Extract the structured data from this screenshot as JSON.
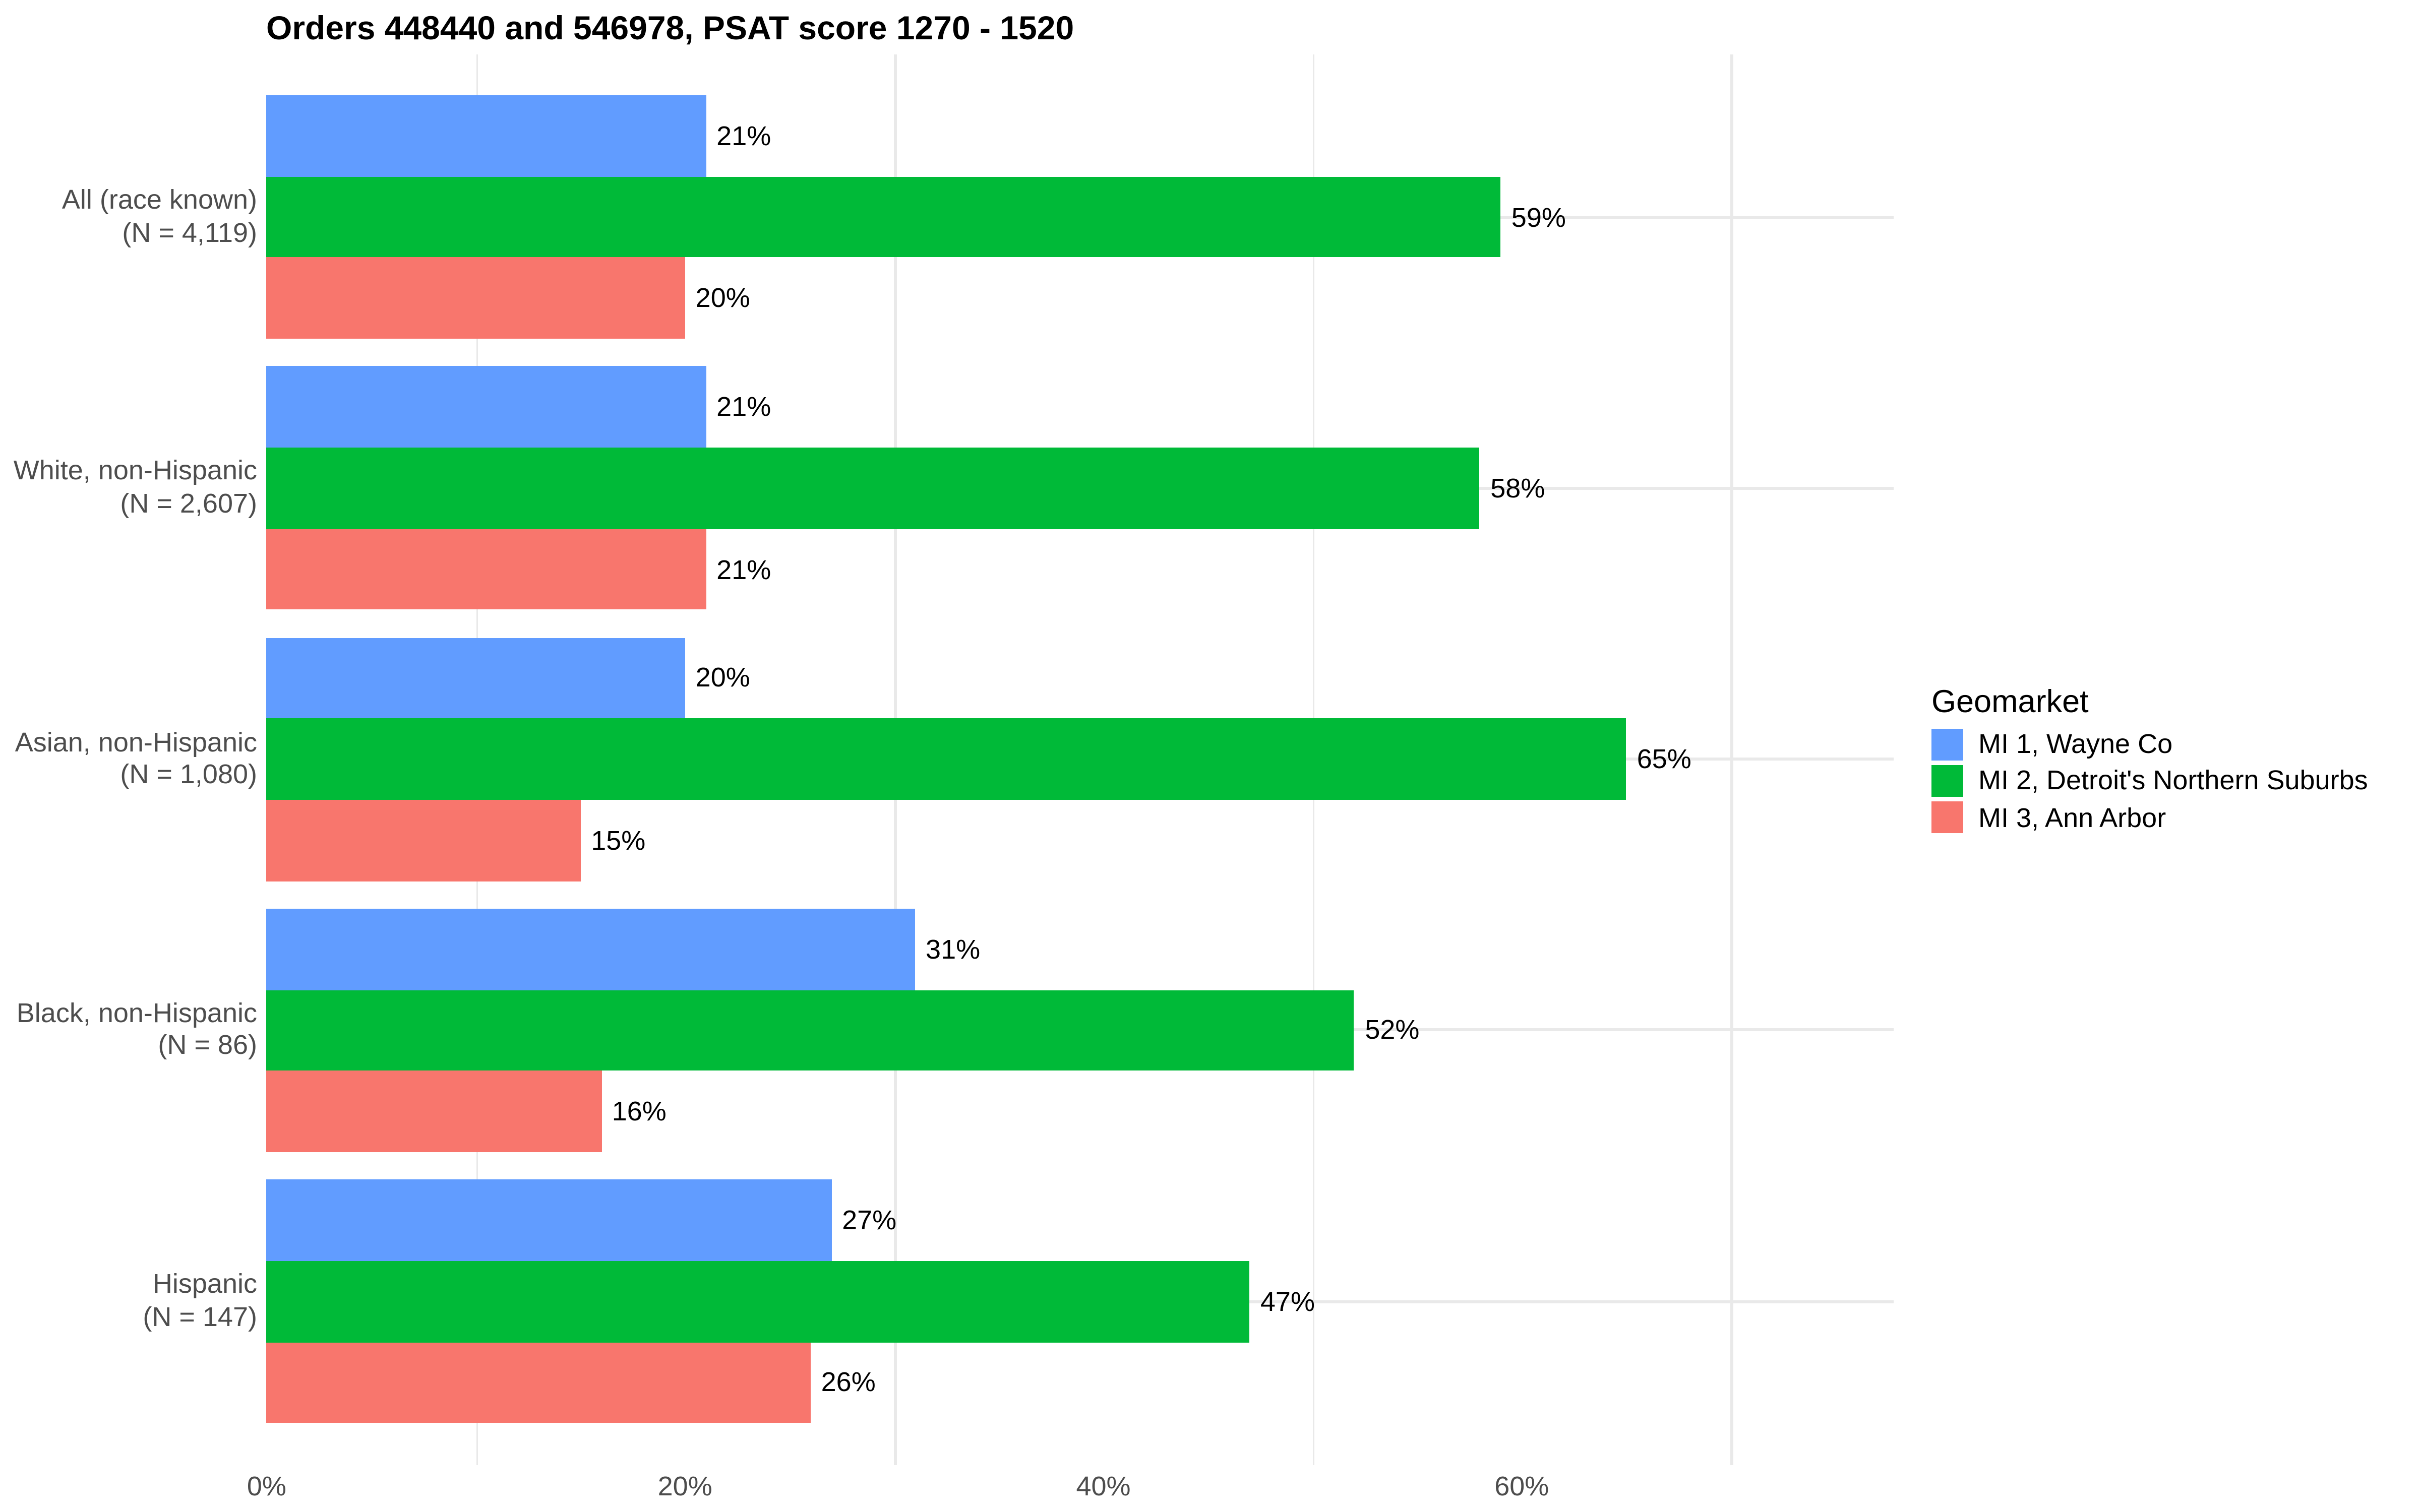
{
  "title": "Orders 448440 and 546978, PSAT score 1270 - 1520",
  "legend": {
    "title": "Geomarket",
    "items": [
      {
        "label": "MI 1, Wayne Co",
        "color": "#619CFF"
      },
      {
        "label": "MI 2, Detroit's Northern Suburbs",
        "color": "#00BA38"
      },
      {
        "label": "MI 3, Ann Arbor",
        "color": "#F8766D"
      }
    ]
  },
  "colors": {
    "background": "#FFFFFF",
    "gridline": "#E9E9E9",
    "axis_text": "#4D4D4D",
    "label_text": "#000000",
    "series_blue": "#619CFF",
    "series_green": "#00BA38",
    "series_red": "#F8766D"
  },
  "chart_data": {
    "type": "bar",
    "orientation": "horizontal",
    "title": "Orders 448440 and 546978, PSAT score 1270 - 1520",
    "xlabel": "",
    "ylabel": "",
    "legend_title": "Geomarket",
    "legend_position": "right",
    "grid": "vertical minor gridlines at 10/30/50/70, horizontal major gridline per category",
    "xlim": [
      0,
      77.8
    ],
    "x_tick_labels": [
      "0%",
      "20%",
      "40%",
      "60%"
    ],
    "x_tick_values": [
      0,
      20,
      40,
      60
    ],
    "minor_grid_values": [
      10,
      30,
      50,
      70
    ],
    "categories": [
      {
        "line1": "All (race known)",
        "line2": "(N = 4,119)"
      },
      {
        "line1": "White, non-Hispanic",
        "line2": "(N = 2,607)"
      },
      {
        "line1": "Asian, non-Hispanic",
        "line2": "(N = 1,080)"
      },
      {
        "line1": "Black, non-Hispanic",
        "line2": "(N = 86)"
      },
      {
        "line1": "Hispanic",
        "line2": "(N = 147)"
      }
    ],
    "series": [
      {
        "name": "MI 1, Wayne Co",
        "color": "#619CFF",
        "values": [
          21,
          21,
          20,
          31,
          27
        ],
        "labels": [
          "21%",
          "21%",
          "20%",
          "31%",
          "27%"
        ]
      },
      {
        "name": "MI 2, Detroit's Northern Suburbs",
        "color": "#00BA38",
        "values": [
          59,
          58,
          65,
          52,
          47
        ],
        "labels": [
          "59%",
          "58%",
          "65%",
          "52%",
          "47%"
        ]
      },
      {
        "name": "MI 3, Ann Arbor",
        "color": "#F8766D",
        "values": [
          20,
          21,
          15,
          16,
          26
        ],
        "labels": [
          "20%",
          "21%",
          "15%",
          "16%",
          "26%"
        ]
      }
    ]
  }
}
